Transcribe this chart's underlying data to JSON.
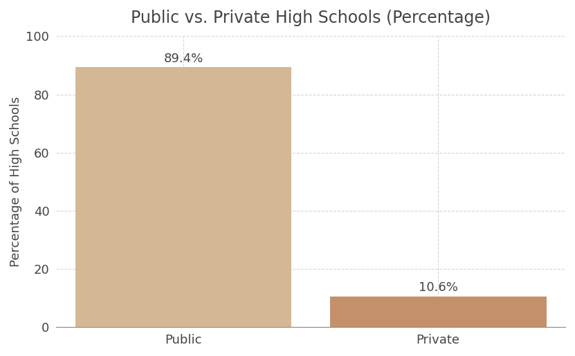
{
  "categories": [
    "Public",
    "Private"
  ],
  "values": [
    89.4,
    10.6
  ],
  "bar_colors": [
    "#D4B896",
    "#C4906A"
  ],
  "labels": [
    "89.4%",
    "10.6%"
  ],
  "title": "Public vs. Private High Schools (Percentage)",
  "ylabel": "Percentage of High Schools",
  "ylim": [
    0,
    100
  ],
  "yticks": [
    0,
    20,
    40,
    60,
    80,
    100
  ],
  "title_fontsize": 17,
  "label_fontsize": 13,
  "tick_fontsize": 13,
  "bar_width": 0.85,
  "grid_color": "#BBBBBB",
  "background_color": "#FFFFFF",
  "text_color": "#444444"
}
